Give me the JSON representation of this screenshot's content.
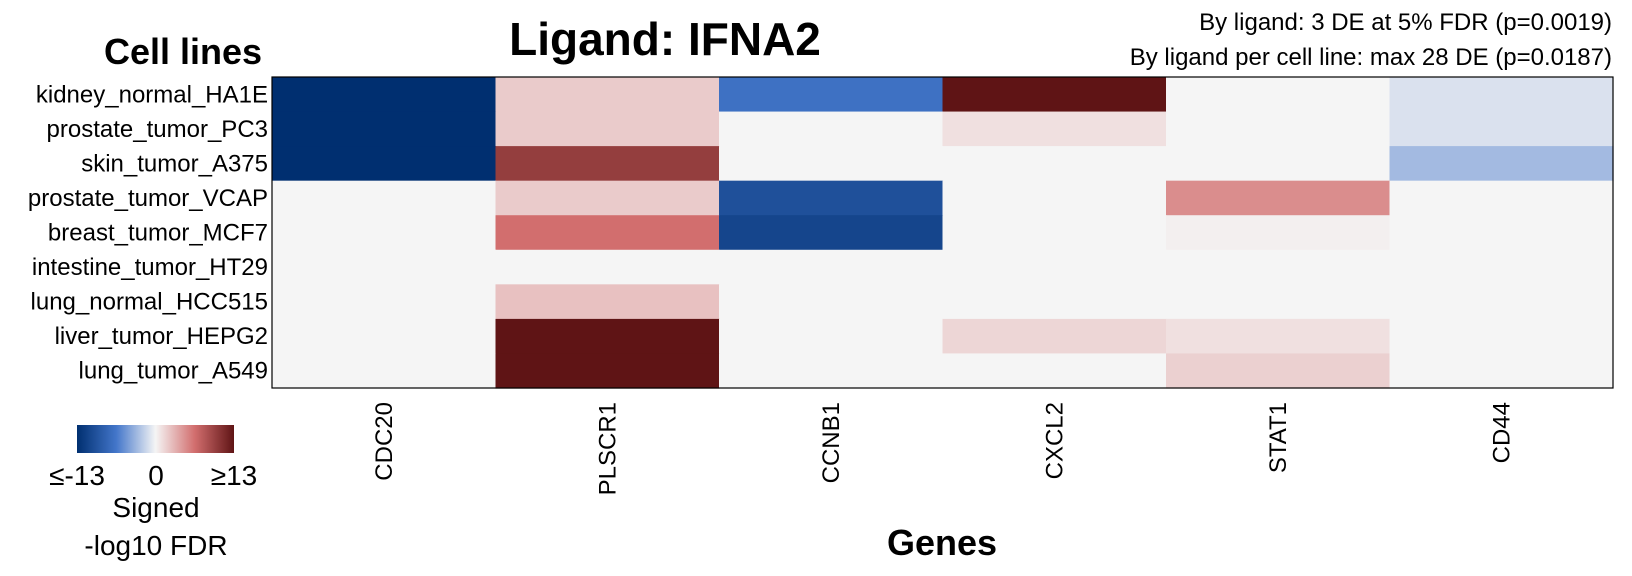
{
  "chart_data": {
    "type": "heatmap",
    "title": "Ligand: IFNA2",
    "subtitle_lines": [
      "By ligand: 3 DE at 5% FDR (p=0.0019)",
      "By ligand per cell line: max 28 DE (p=0.0187)"
    ],
    "ylabel": "Cell lines",
    "xlabel": "Genes",
    "rows": [
      "kidney_normal_HA1E",
      "prostate_tumor_PC3",
      "skin_tumor_A375",
      "prostate_tumor_VCAP",
      "breast_tumor_MCF7",
      "intestine_tumor_HT29",
      "lung_normal_HCC515",
      "liver_tumor_HEPG2",
      "lung_tumor_A549"
    ],
    "columns": [
      "CDC20",
      "PLSCR1",
      "CCNB1",
      "CXCL2",
      "STAT1",
      "CD44"
    ],
    "values": [
      [
        -13,
        2,
        -7,
        13,
        0,
        -1
      ],
      [
        -13,
        2,
        0,
        1,
        0,
        -1
      ],
      [
        -13,
        10,
        0,
        0,
        0,
        -3
      ],
      [
        0,
        2,
        -10,
        0,
        5,
        0
      ],
      [
        0,
        6.5,
        -11,
        0,
        0.3,
        0
      ],
      [
        0,
        0,
        0,
        0,
        0,
        0
      ],
      [
        0,
        2.5,
        0,
        0,
        0,
        0
      ],
      [
        0,
        13,
        0,
        1.5,
        1,
        0
      ],
      [
        0,
        13,
        0,
        0,
        1.8,
        0
      ]
    ],
    "zlim": [
      -13,
      13
    ],
    "colors": {
      "low": "#002f70",
      "mid": "#f5f5f5",
      "high": "#5f1415"
    },
    "legend": {
      "min_label": "≤-13",
      "mid_label": "0",
      "max_label": "≥13",
      "title_lines": [
        "Signed",
        "-log10 FDR"
      ]
    }
  }
}
